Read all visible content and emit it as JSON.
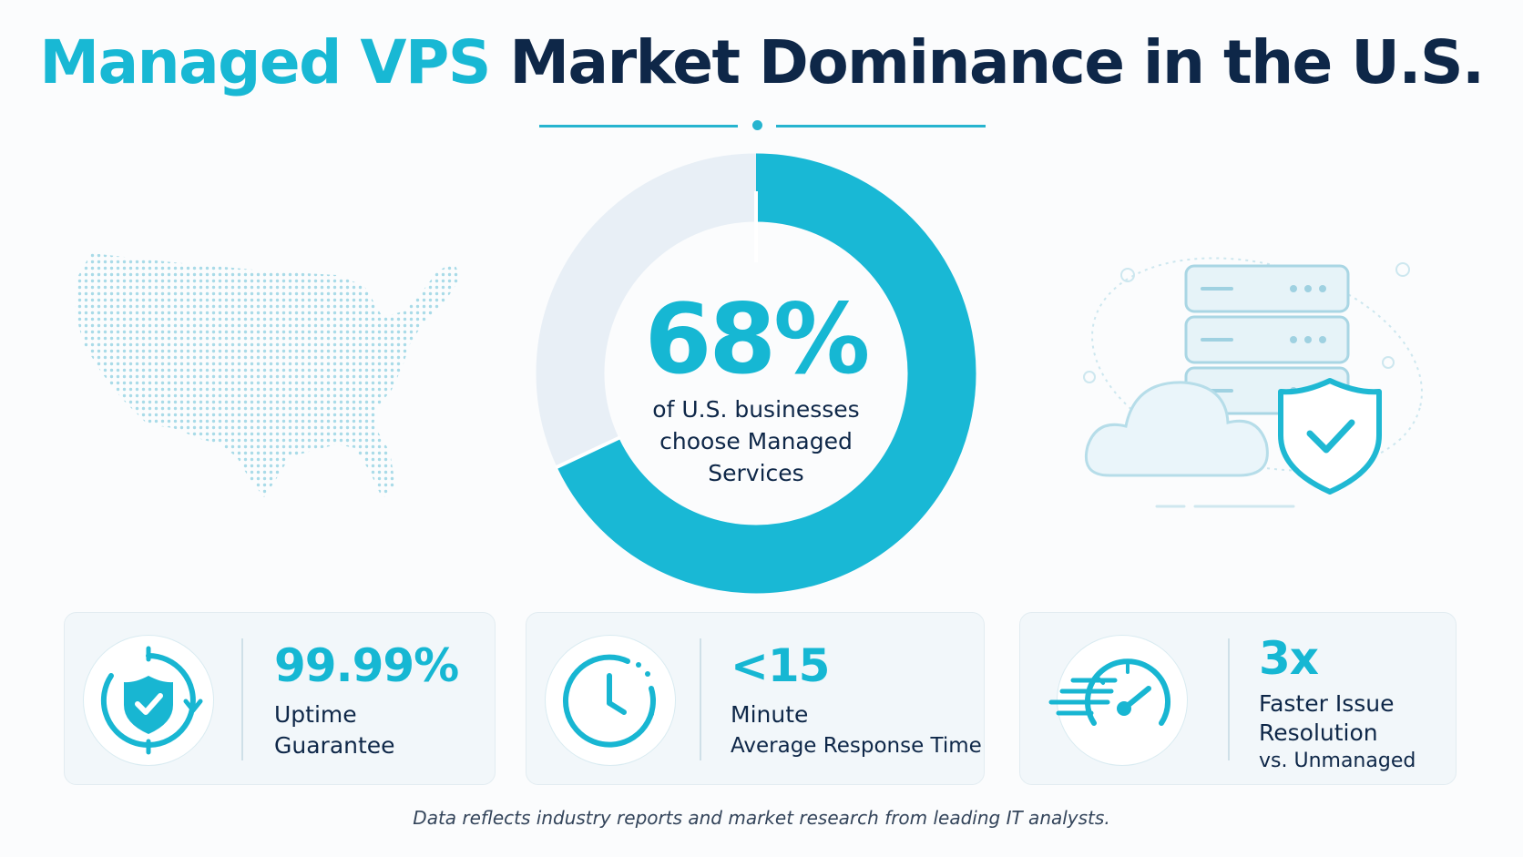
{
  "title": {
    "part1": "Managed VPS",
    "part2": "Market Dominance in the U.S."
  },
  "donut": {
    "percent": 68,
    "label": "68%",
    "caption_lines": [
      "of U.S. businesses",
      "choose Managed",
      "Services"
    ],
    "fill_color": "#19b8d5",
    "track_color": "#e8eff6"
  },
  "illustrations": {
    "left": "usa-dot-map",
    "right": "server-cloud-shield"
  },
  "stats": [
    {
      "icon": "shield-check-cycle-icon",
      "value": "99.99%",
      "lines": [
        "Uptime",
        "Guarantee"
      ]
    },
    {
      "icon": "clock-icon",
      "value": "<15",
      "lines": [
        "Minute",
        "Average Response Time"
      ]
    },
    {
      "icon": "speedometer-icon",
      "value": "3x",
      "lines": [
        "Faster Issue",
        "Resolution"
      ],
      "sub": "vs. Unmanaged"
    }
  ],
  "footnote": "Data reflects industry reports and market research from leading IT analysts.",
  "colors": {
    "accent": "#16b7d3",
    "navy": "#0e2748"
  }
}
